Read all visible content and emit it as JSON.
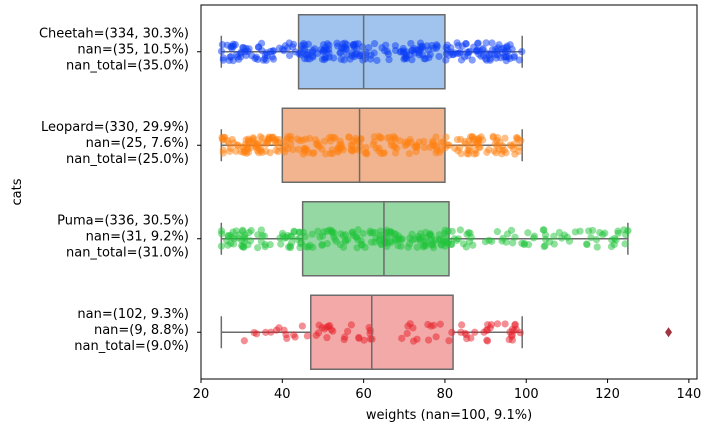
{
  "chart_data": {
    "type": "box",
    "xlabel": "weights (nan=100, 9.1%)",
    "ylabel": "cats",
    "xlim": [
      20,
      142
    ],
    "xticks": [
      20,
      40,
      60,
      80,
      100,
      120,
      140
    ],
    "grid": false,
    "legend": "none",
    "categories": [
      {
        "label_lines": [
          "Cheetah=(334, 30.3%)",
          "nan=(35, 10.5%)",
          "nan_total=(35.0%)"
        ],
        "box_color": "#a1c4ef",
        "point_color": "#0a3cf5",
        "whisker_low": 25,
        "q1": 44,
        "median": 60,
        "q3": 80,
        "whisker_high": 99,
        "outliers": []
      },
      {
        "label_lines": [
          "Leopard=(330, 29.9%)",
          "nan=(25, 7.6%)",
          "nan_total=(25.0%)"
        ],
        "box_color": "#f1b48e",
        "point_color": "#ff7f0e",
        "whisker_low": 25,
        "q1": 40,
        "median": 59,
        "q3": 80,
        "whisker_high": 99,
        "outliers": []
      },
      {
        "label_lines": [
          "Puma=(336, 30.5%)",
          "nan=(31, 9.2%)",
          "nan_total=(31.0%)"
        ],
        "box_color": "#96d8a3",
        "point_color": "#1fc43a",
        "whisker_low": 25,
        "q1": 45,
        "median": 65,
        "q3": 81,
        "whisker_high": 125,
        "outliers": []
      },
      {
        "label_lines": [
          "nan=(102, 9.3%)",
          "nan=(9, 8.8%)",
          "nan_total=(9.0%)"
        ],
        "box_color": "#f3a9a8",
        "point_color": "#e8202a",
        "whisker_low": 25,
        "q1": 47,
        "median": 62,
        "q3": 82,
        "whisker_high": 99,
        "outliers": [
          135
        ]
      }
    ]
  },
  "colors": {
    "box_edge": "#6b6b6b",
    "outlier": "#a03540"
  }
}
